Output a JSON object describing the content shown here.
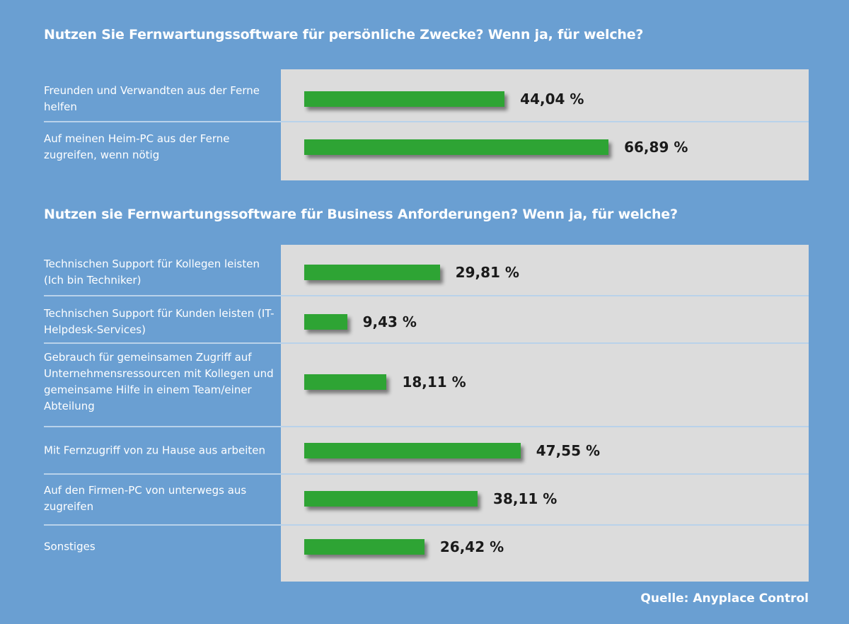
{
  "chart_data": [
    {
      "type": "bar",
      "orientation": "horizontal",
      "title": "Nutzen Sie Fernwartungssoftware für persönliche Zwecke? Wenn ja, für welche?",
      "categories": [
        "Freunden und Verwandten aus der Ferne helfen",
        "Auf meinen Heim-PC aus der Ferne zugreifen, wenn nötig"
      ],
      "values": [
        44.04,
        66.89
      ],
      "value_labels": [
        "44,04 %",
        "66,89 %"
      ],
      "unit": "%",
      "bar_color": "#2ea434"
    },
    {
      "type": "bar",
      "orientation": "horizontal",
      "title": "Nutzen sie Fernwartungssoftware für Business Anforderungen? Wenn ja, für welche?",
      "categories": [
        "Technischen Support für Kollegen leisten (Ich bin Techniker)",
        "Technischen Support für Kunden leisten (IT-Helpdesk-Services)",
        "Gebrauch für gemeinsamen Zugriff auf Unternehmensressourcen mit Kollegen und gemeinsame Hilfe in einem Team/einer Abteilung",
        "Mit Fernzugriff von zu Hause aus arbeiten",
        "Auf den Firmen-PC von unterwegs aus zugreifen",
        "Sonstiges"
      ],
      "values": [
        29.81,
        9.43,
        18.11,
        47.55,
        38.11,
        26.42
      ],
      "value_labels": [
        "29,81 %",
        "9,43 %",
        "18,11 %",
        "47,55 %",
        "38,11 %",
        "26,42 %"
      ],
      "unit": "%",
      "bar_color": "#2ea434"
    }
  ],
  "source": "Quelle: Anyplace Control",
  "colors": {
    "background": "#6a9fd2",
    "panel": "#dcdcdc",
    "bar": "#2ea434"
  }
}
